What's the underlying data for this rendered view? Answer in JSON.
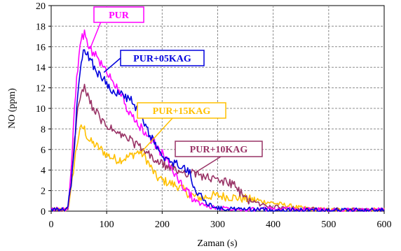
{
  "chart_data": {
    "type": "line",
    "xlabel": "Zaman (s)",
    "ylabel": "NO (ppm)",
    "xlim": [
      0,
      600
    ],
    "ylim": [
      0,
      20
    ],
    "xticks": [
      0,
      100,
      200,
      300,
      400,
      500,
      600
    ],
    "yticks": [
      0,
      2,
      4,
      6,
      8,
      10,
      12,
      14,
      16,
      18,
      20
    ],
    "grid": true,
    "legend": "callout-labels",
    "series": [
      {
        "name": "PUR",
        "color": "#ff00ff",
        "x": [
          0,
          25,
          30,
          35,
          40,
          45,
          50,
          55,
          60,
          65,
          70,
          80,
          90,
          100,
          110,
          120,
          130,
          140,
          150,
          160,
          170,
          180,
          190,
          200,
          210,
          220,
          230,
          240,
          250,
          260,
          270,
          280,
          290,
          300,
          320,
          350,
          400,
          450,
          500,
          550,
          600
        ],
        "y": [
          0.2,
          0.2,
          0.5,
          3.0,
          8.0,
          12.5,
          15.0,
          16.8,
          17.2,
          16.5,
          15.8,
          15.2,
          14.3,
          13.5,
          12.8,
          12.0,
          11.0,
          9.5,
          8.8,
          8.2,
          7.6,
          7.0,
          6.3,
          5.6,
          4.8,
          3.9,
          3.0,
          2.2,
          1.6,
          1.0,
          0.7,
          0.5,
          0.4,
          0.3,
          0.3,
          0.2,
          0.2,
          0.2,
          0.1,
          0.1,
          0.1
        ]
      },
      {
        "name": "PUR+05KAG",
        "color": "#0000dd",
        "x": [
          0,
          25,
          30,
          35,
          40,
          45,
          50,
          55,
          60,
          65,
          70,
          80,
          90,
          100,
          110,
          120,
          130,
          140,
          150,
          160,
          170,
          180,
          190,
          200,
          210,
          220,
          230,
          240,
          250,
          260,
          270,
          280,
          290,
          300,
          320,
          350,
          400,
          450,
          500,
          550,
          600
        ],
        "y": [
          0.1,
          0.1,
          0.5,
          2.0,
          5.0,
          9.0,
          12.5,
          14.5,
          15.8,
          15.3,
          14.8,
          13.8,
          13.0,
          12.5,
          11.8,
          11.5,
          11.2,
          11.0,
          10.3,
          9.5,
          8.2,
          7.3,
          6.2,
          5.2,
          4.8,
          4.7,
          4.5,
          4.2,
          3.6,
          2.2,
          1.3,
          0.8,
          0.5,
          0.3,
          0.2,
          0.2,
          0.1,
          0.1,
          0.1,
          0.1,
          0.1
        ]
      },
      {
        "name": "PUR+15KAG",
        "color": "#ffc000",
        "x": [
          0,
          25,
          30,
          35,
          40,
          45,
          50,
          55,
          60,
          65,
          70,
          80,
          90,
          100,
          110,
          120,
          130,
          140,
          150,
          160,
          170,
          180,
          190,
          200,
          210,
          220,
          230,
          240,
          250,
          260,
          270,
          280,
          290,
          300,
          320,
          350,
          400,
          450,
          500,
          550,
          600
        ],
        "y": [
          0.1,
          0.1,
          0.3,
          1.5,
          4.0,
          6.0,
          7.5,
          8.2,
          8.0,
          7.2,
          6.8,
          6.4,
          6.0,
          5.5,
          5.2,
          5.0,
          5.1,
          5.3,
          5.6,
          5.8,
          5.2,
          4.2,
          3.3,
          3.0,
          2.8,
          2.6,
          2.4,
          2.0,
          1.6,
          1.4,
          1.3,
          1.4,
          1.5,
          1.5,
          1.4,
          1.2,
          0.8,
          0.3,
          0.1,
          0.1,
          0.1
        ]
      },
      {
        "name": "PUR+10KAG",
        "color": "#993366",
        "x": [
          0,
          25,
          30,
          35,
          40,
          45,
          50,
          55,
          60,
          65,
          70,
          80,
          90,
          100,
          110,
          120,
          130,
          140,
          150,
          160,
          170,
          180,
          190,
          200,
          210,
          220,
          230,
          240,
          250,
          260,
          270,
          280,
          290,
          300,
          310,
          320,
          330,
          340,
          350,
          360,
          380,
          400,
          420,
          450,
          500,
          550,
          600
        ],
        "y": [
          0.1,
          0.1,
          0.3,
          2.0,
          5.5,
          8.5,
          10.5,
          11.6,
          11.9,
          11.2,
          10.6,
          9.7,
          8.8,
          8.3,
          7.9,
          7.5,
          7.3,
          7.0,
          6.6,
          6.2,
          5.7,
          5.3,
          4.8,
          4.6,
          4.3,
          4.1,
          3.9,
          3.8,
          3.7,
          3.6,
          3.5,
          3.3,
          3.1,
          3.0,
          2.9,
          2.8,
          2.5,
          1.8,
          1.3,
          1.0,
          0.6,
          0.4,
          0.3,
          0.2,
          0.1,
          0.1,
          0.1
        ]
      }
    ]
  }
}
